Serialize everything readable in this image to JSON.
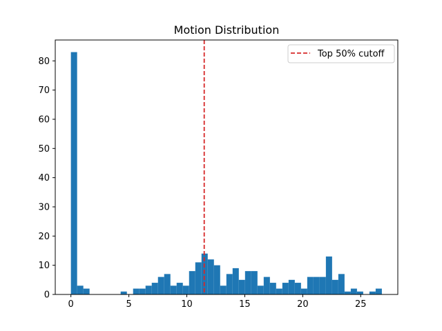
{
  "chart_data": {
    "type": "bar",
    "title": "Motion Distribution",
    "xlabel": "",
    "ylabel": "",
    "xlim": [
      -1.35,
      28.2
    ],
    "ylim": [
      0,
      87.15
    ],
    "xticks": [
      0,
      5,
      10,
      15,
      20,
      25
    ],
    "yticks": [
      0,
      10,
      20,
      30,
      40,
      50,
      60,
      70,
      80
    ],
    "bin_start": 0.0,
    "bin_width": 0.5365,
    "counts": [
      83,
      3,
      2,
      0,
      0,
      0,
      0,
      0,
      1,
      0,
      2,
      2,
      3,
      4,
      6,
      7,
      3,
      4,
      3,
      8,
      11,
      14,
      12,
      10,
      3,
      7,
      9,
      5,
      8,
      8,
      3,
      6,
      4,
      2,
      4,
      5,
      4,
      2,
      6,
      6,
      6,
      13,
      5,
      7,
      1,
      2,
      1,
      0,
      1,
      2
    ],
    "bar_color": "#1f77b4",
    "cutoff": {
      "value": 11.5,
      "label": "Top 50% cutoff",
      "color": "#d62728",
      "style": "dashed"
    },
    "legend_position": "top-right",
    "grid": false
  }
}
